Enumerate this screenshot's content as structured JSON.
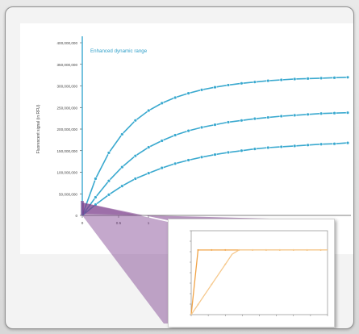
{
  "chart_data": [
    {
      "type": "line",
      "title": "Enhanced dynamic range",
      "ylabel": "Fluorescent signal (in RFU)",
      "xlabel": "",
      "ylim": [
        0,
        400000000
      ],
      "xlim": [
        0,
        10
      ],
      "yticks": [
        "400,000,000",
        "350,000,000",
        "300,000,000",
        "250,000,000",
        "200,000,000",
        "150,000,000",
        "100,000,000",
        "50,000,000",
        "0"
      ],
      "xticks": [
        "0",
        "0.5",
        "1"
      ],
      "grid": false,
      "colors": {
        "series": "#3aa9cf",
        "axis": "#3aa9cf",
        "title": "#2f9fc9",
        "wedge": "#7d3f8d"
      },
      "x": [
        0,
        0.5,
        1,
        1.5,
        2,
        2.5,
        3,
        3.5,
        4,
        4.5,
        5,
        5.5,
        6,
        6.5,
        7,
        7.5,
        8,
        8.5,
        9,
        9.5,
        10
      ],
      "series": [
        {
          "values": [
            0,
            85000000,
            145000000,
            188000000,
            220000000,
            243000000,
            260000000,
            273000000,
            283000000,
            291000000,
            297000000,
            302000000,
            306000000,
            309000000,
            312000000,
            314000000,
            316000000,
            317000000,
            318000000,
            319000000,
            320000000
          ]
        },
        {
          "values": [
            0,
            42000000,
            80000000,
            112000000,
            138000000,
            158000000,
            173000000,
            186000000,
            196000000,
            204000000,
            210000000,
            216000000,
            220000000,
            224000000,
            227000000,
            230000000,
            232000000,
            234000000,
            236000000,
            237000000,
            238000000
          ]
        },
        {
          "values": [
            0,
            25000000,
            48000000,
            68000000,
            85000000,
            98000000,
            110000000,
            120000000,
            128000000,
            135000000,
            141000000,
            146000000,
            150000000,
            154000000,
            157000000,
            159000000,
            161000000,
            163000000,
            165000000,
            166000000,
            168000000
          ]
        }
      ]
    },
    {
      "type": "line",
      "title": "",
      "xlabel": "",
      "ylabel": "",
      "grid": false,
      "ylim": [
        0,
        5
      ],
      "xlim": [
        0,
        10
      ],
      "colors": {
        "upper": "#f0a347",
        "lower": "#f6c98e",
        "axis": "#7a7a7a"
      },
      "x": [
        0,
        0.5,
        1,
        1.5,
        2,
        2.5,
        3,
        3.5,
        4,
        4.5,
        5,
        5.5,
        6,
        6.5,
        7,
        7.5,
        8,
        8.5,
        9,
        9.5,
        10
      ],
      "series": [
        {
          "values": [
            0,
            3.85,
            3.85,
            3.85,
            3.85,
            3.85,
            3.85,
            3.85,
            3.85,
            3.85,
            3.85,
            3.85,
            3.85,
            3.85,
            3.85,
            3.85,
            3.85,
            3.85,
            3.85,
            3.85,
            3.85
          ]
        },
        {
          "values": [
            0,
            0.6,
            1.2,
            1.8,
            2.4,
            3,
            3.6,
            3.85,
            3.85,
            3.85,
            3.85,
            3.85,
            3.85,
            3.85,
            3.85,
            3.85,
            3.85,
            3.85,
            3.85,
            3.85,
            3.85
          ]
        }
      ]
    }
  ]
}
